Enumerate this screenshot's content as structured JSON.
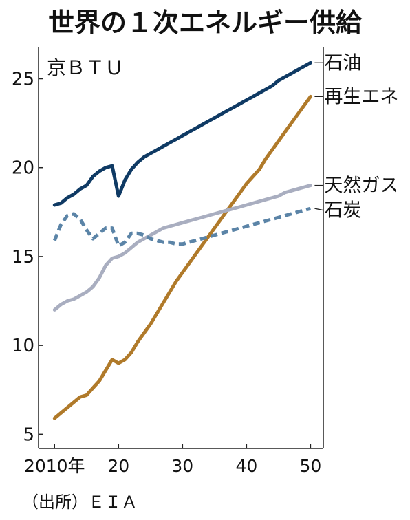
{
  "chart_data": {
    "type": "line",
    "title": "世界の１次エネルギー供給",
    "ylabel": "京ＢＴＵ",
    "source": "（出所）ＥＩＡ",
    "ylim": [
      4.2,
      26.8
    ],
    "xlim": [
      2007.5,
      2052
    ],
    "yticks": [
      5,
      10,
      15,
      20,
      25
    ],
    "ytick_labels": [
      "5",
      "10",
      "15",
      "20",
      "25"
    ],
    "xticks": [
      2010,
      2020,
      2030,
      2040,
      2050
    ],
    "xtick_labels": [
      "2010年",
      "20",
      "30",
      "40",
      "50"
    ],
    "legend_position": "right, at line ends",
    "grid": false,
    "series": [
      {
        "name": "石油",
        "color": "#0f3a64",
        "dash": "",
        "x": [
          2010,
          2011,
          2012,
          2013,
          2014,
          2015,
          2016,
          2017,
          2018,
          2019,
          2020,
          2021,
          2022,
          2023,
          2024,
          2025,
          2026,
          2027,
          2028,
          2029,
          2030,
          2031,
          2032,
          2033,
          2034,
          2035,
          2036,
          2037,
          2038,
          2039,
          2040,
          2041,
          2042,
          2043,
          2044,
          2045,
          2046,
          2047,
          2048,
          2049,
          2050
        ],
        "y": [
          17.9,
          18.0,
          18.3,
          18.5,
          18.8,
          19.0,
          19.5,
          19.8,
          20.0,
          20.1,
          18.4,
          19.3,
          19.9,
          20.3,
          20.6,
          20.8,
          21.0,
          21.2,
          21.4,
          21.6,
          21.8,
          22.0,
          22.2,
          22.4,
          22.6,
          22.8,
          23.0,
          23.2,
          23.4,
          23.6,
          23.8,
          24.0,
          24.2,
          24.4,
          24.6,
          24.9,
          25.1,
          25.3,
          25.5,
          25.7,
          25.9
        ]
      },
      {
        "name": "再生エネ",
        "color": "#b07a2a",
        "dash": "",
        "x": [
          2010,
          2011,
          2012,
          2013,
          2014,
          2015,
          2016,
          2017,
          2018,
          2019,
          2020,
          2021,
          2022,
          2023,
          2024,
          2025,
          2026,
          2027,
          2028,
          2029,
          2030,
          2031,
          2032,
          2033,
          2034,
          2035,
          2036,
          2037,
          2038,
          2039,
          2040,
          2041,
          2042,
          2043,
          2044,
          2045,
          2046,
          2047,
          2048,
          2049,
          2050
        ],
        "y": [
          5.9,
          6.2,
          6.5,
          6.8,
          7.1,
          7.2,
          7.6,
          8.0,
          8.6,
          9.2,
          9.0,
          9.2,
          9.6,
          10.2,
          10.7,
          11.2,
          11.8,
          12.4,
          13.0,
          13.6,
          14.1,
          14.6,
          15.1,
          15.6,
          16.1,
          16.6,
          17.1,
          17.6,
          18.1,
          18.6,
          19.1,
          19.5,
          19.9,
          20.5,
          21.0,
          21.5,
          22.0,
          22.5,
          23.0,
          23.5,
          24.0
        ]
      },
      {
        "name": "天然ガス",
        "color": "#a9aec0",
        "dash": "",
        "x": [
          2010,
          2011,
          2012,
          2013,
          2014,
          2015,
          2016,
          2017,
          2018,
          2019,
          2020,
          2021,
          2022,
          2023,
          2024,
          2025,
          2026,
          2027,
          2028,
          2029,
          2030,
          2031,
          2032,
          2033,
          2034,
          2035,
          2036,
          2037,
          2038,
          2039,
          2040,
          2041,
          2042,
          2043,
          2044,
          2045,
          2046,
          2047,
          2048,
          2049,
          2050
        ],
        "y": [
          12.0,
          12.3,
          12.5,
          12.6,
          12.8,
          13.0,
          13.3,
          13.8,
          14.5,
          14.9,
          15.0,
          15.2,
          15.5,
          15.8,
          16.0,
          16.2,
          16.4,
          16.6,
          16.7,
          16.8,
          16.9,
          17.0,
          17.1,
          17.2,
          17.3,
          17.4,
          17.5,
          17.6,
          17.7,
          17.8,
          17.9,
          18.0,
          18.1,
          18.2,
          18.3,
          18.4,
          18.6,
          18.7,
          18.8,
          18.9,
          19.0
        ]
      },
      {
        "name": "石炭",
        "color": "#5b84a7",
        "dash": "10,6",
        "x": [
          2010,
          2011,
          2012,
          2013,
          2014,
          2015,
          2016,
          2017,
          2018,
          2019,
          2020,
          2021,
          2022,
          2023,
          2024,
          2025,
          2026,
          2027,
          2028,
          2029,
          2030,
          2031,
          2032,
          2033,
          2034,
          2035,
          2036,
          2037,
          2038,
          2039,
          2040,
          2041,
          2042,
          2043,
          2044,
          2045,
          2046,
          2047,
          2048,
          2049,
          2050
        ],
        "y": [
          15.9,
          16.8,
          17.3,
          17.4,
          17.1,
          16.5,
          16.0,
          16.3,
          16.6,
          16.6,
          15.6,
          15.8,
          16.3,
          16.3,
          16.2,
          16.0,
          15.9,
          15.8,
          15.8,
          15.7,
          15.7,
          15.8,
          15.9,
          16.0,
          16.1,
          16.2,
          16.3,
          16.4,
          16.5,
          16.6,
          16.7,
          16.8,
          16.9,
          17.0,
          17.1,
          17.2,
          17.3,
          17.4,
          17.5,
          17.6,
          17.7
        ]
      }
    ]
  }
}
